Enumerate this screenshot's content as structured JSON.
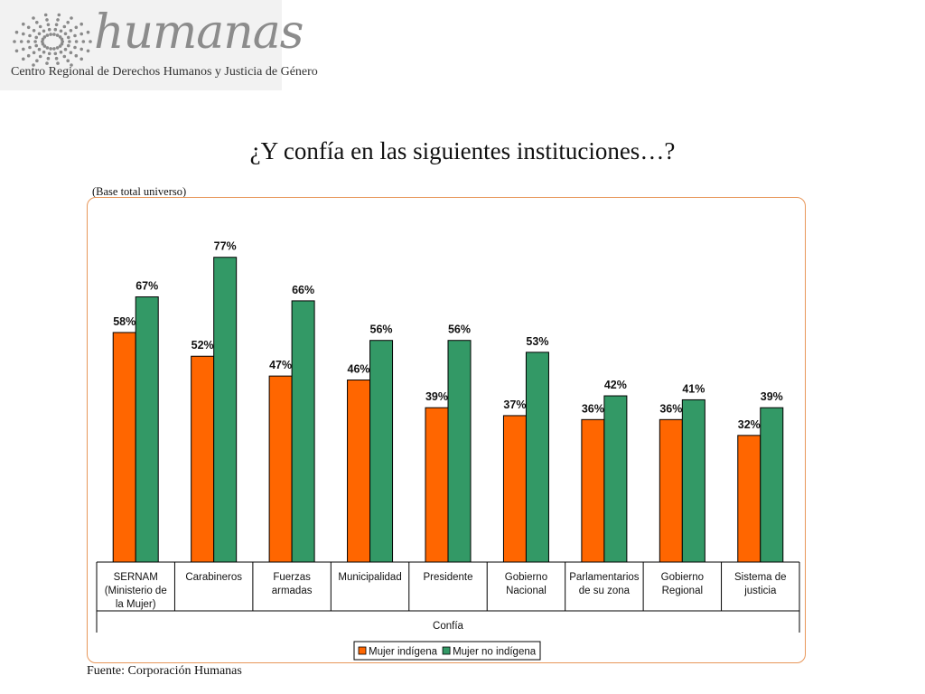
{
  "logo": {
    "word": "humanas",
    "subtitle": "Centro Regional de Derechos Humanos y Justicia de Género"
  },
  "title": "¿Y confía en las siguientes instituciones…?",
  "base_note": "(Base total universo)",
  "source": "Fuente: Corporación Humanas",
  "chart_data": {
    "type": "bar",
    "title": "¿Y confía en las siguientes instituciones…?",
    "xlabel": "Confía",
    "ylabel": "",
    "ylim": [
      0,
      100
    ],
    "grid": false,
    "legend_position": "bottom",
    "categories": [
      [
        "SERNAM",
        "(Ministerio de",
        "la Mujer)"
      ],
      [
        "Carabineros"
      ],
      [
        "Fuerzas",
        "armadas"
      ],
      [
        "Municipalidad"
      ],
      [
        "Presidente"
      ],
      [
        "Gobierno",
        "Nacional"
      ],
      [
        "Parlamentarios",
        "de su zona"
      ],
      [
        "Gobierno",
        "Regional"
      ],
      [
        "Sistema de",
        "justicia"
      ]
    ],
    "series": [
      {
        "name": "Mujer indígena",
        "color": "#ff6600",
        "values": [
          58,
          52,
          47,
          46,
          39,
          37,
          36,
          36,
          32
        ]
      },
      {
        "name": "Mujer no indígena",
        "color": "#339966",
        "values": [
          67,
          77,
          66,
          56,
          56,
          53,
          42,
          41,
          39
        ]
      }
    ],
    "value_suffix": "%"
  }
}
